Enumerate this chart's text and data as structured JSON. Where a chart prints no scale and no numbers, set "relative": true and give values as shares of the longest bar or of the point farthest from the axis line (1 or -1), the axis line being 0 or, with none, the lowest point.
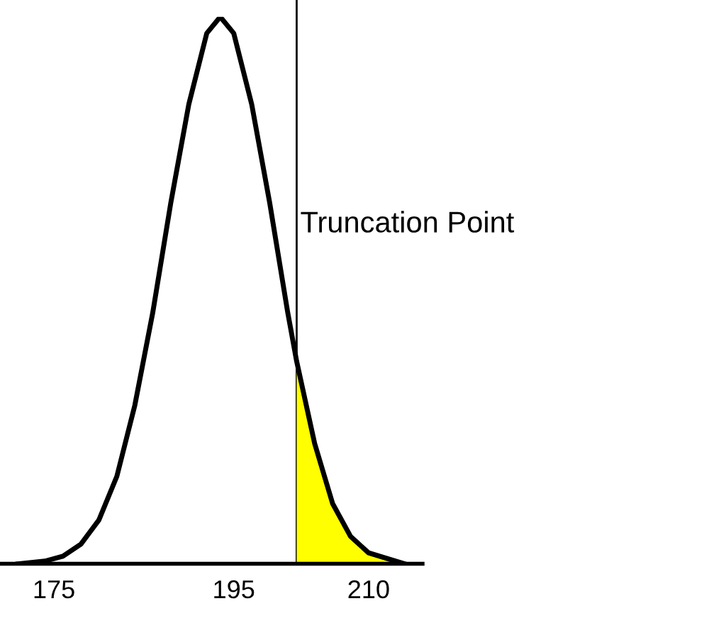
{
  "chart_data": {
    "type": "line",
    "relative": true,
    "xlim": [
      169,
      216
    ],
    "xticks": [
      175,
      195,
      210
    ],
    "series": [
      {
        "color": "#000000",
        "x": [
          171,
          174,
          176,
          178,
          180,
          182,
          184,
          186,
          188,
          190,
          192,
          193.5,
          195,
          197,
          199,
          201,
          202,
          204,
          206,
          208,
          210,
          212,
          214
        ],
        "values": [
          0,
          0.005,
          0.014,
          0.036,
          0.08,
          0.16,
          0.29,
          0.46,
          0.66,
          0.84,
          0.97,
          1,
          0.97,
          0.84,
          0.66,
          0.46,
          0.37,
          0.22,
          0.11,
          0.05,
          0.02,
          0.01,
          0
        ]
      },
      {
        "type": "area",
        "color": "#ffff00",
        "x": [
          202,
          204,
          206,
          208,
          210,
          212,
          214
        ],
        "values": [
          0.37,
          0.22,
          0.11,
          0.05,
          0.02,
          0.01,
          0
        ]
      }
    ],
    "ref_lines": [
      {
        "axis": "x",
        "value": 202,
        "label": "Truncation Point",
        "color": "#000000"
      }
    ],
    "grid": false,
    "legend": false
  }
}
